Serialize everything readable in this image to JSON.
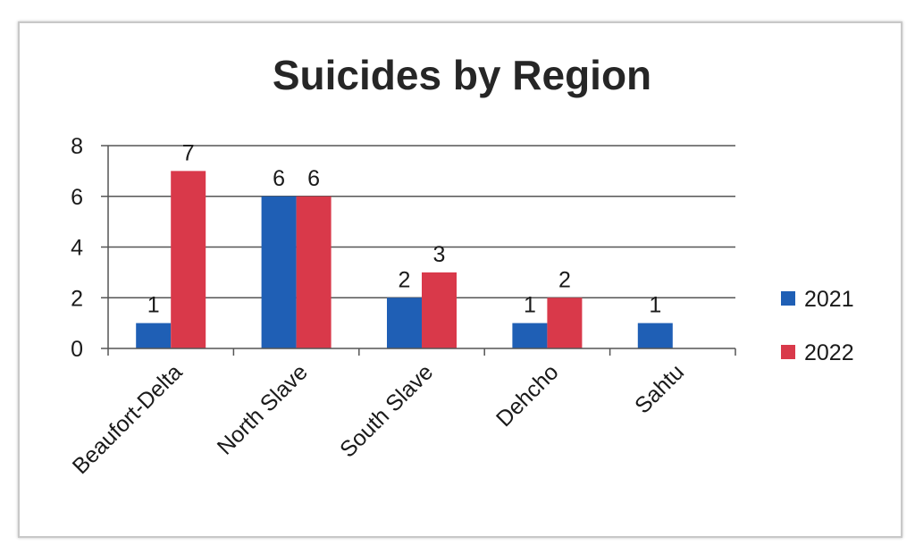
{
  "chart_data": {
    "type": "bar",
    "title": "Suicides by Region",
    "xlabel": "",
    "ylabel": "",
    "categories": [
      "Beaufort-Delta",
      "North Slave",
      "South Slave",
      "Dehcho",
      "Sahtu"
    ],
    "series": [
      {
        "name": "2021",
        "color": "#1f5fb5",
        "values": [
          1,
          6,
          2,
          1,
          1
        ],
        "labels": [
          "1",
          "6",
          "2",
          "1",
          "1"
        ]
      },
      {
        "name": "2022",
        "color": "#d9394a",
        "values": [
          7,
          6,
          3,
          2,
          0
        ],
        "labels": [
          "7",
          "6",
          "3",
          "2",
          ""
        ]
      }
    ],
    "ylim": [
      0,
      8
    ],
    "yticks": [
      0,
      2,
      4,
      6,
      8
    ],
    "grid": true,
    "legend": "right"
  }
}
